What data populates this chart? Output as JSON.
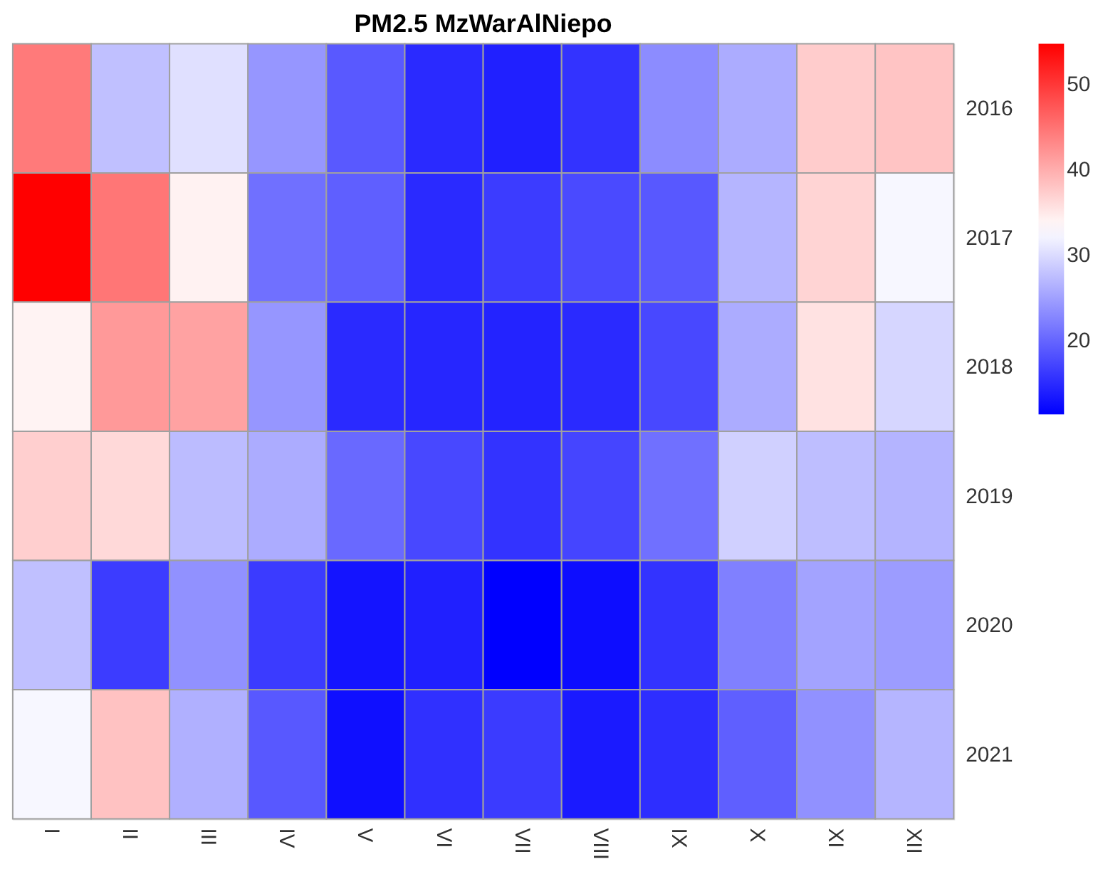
{
  "chart_data": {
    "type": "heatmap",
    "title": "PM2.5 MzWarAlNiepo",
    "categories": [
      "I",
      "II",
      "III",
      "IV",
      "V",
      "VI",
      "VII",
      "VIII",
      "IX",
      "X",
      "XI",
      "XII"
    ],
    "y_categories": [
      "2016",
      "2017",
      "2018",
      "2019",
      "2020",
      "2021"
    ],
    "cells": [
      [
        44.3,
        27.6,
        30.4,
        24.1,
        18.9,
        14.9,
        14.0,
        15.6,
        23.2,
        25.9,
        37.3,
        38.0
      ],
      [
        54.7,
        44.7,
        34.1,
        20.8,
        19.4,
        14.9,
        16.4,
        17.6,
        18.8,
        26.7,
        36.7,
        32.3
      ],
      [
        34.0,
        41.7,
        40.9,
        24.1,
        14.9,
        14.5,
        14.3,
        14.9,
        17.4,
        25.9,
        35.5,
        29.5
      ],
      [
        37.1,
        36.2,
        27.3,
        25.9,
        20.2,
        17.4,
        15.6,
        17.2,
        20.8,
        29.0,
        27.5,
        26.6
      ],
      [
        27.6,
        16.4,
        23.6,
        16.3,
        13.0,
        14.0,
        11.3,
        12.4,
        15.6,
        22.2,
        25.2,
        24.6
      ],
      [
        32.3,
        38.2,
        26.3,
        18.8,
        12.6,
        15.4,
        16.3,
        13.5,
        15.2,
        19.4,
        23.6,
        26.7
      ]
    ],
    "clim": [
      11.3,
      54.7
    ],
    "cticks": [
      20,
      30,
      40,
      50
    ]
  }
}
